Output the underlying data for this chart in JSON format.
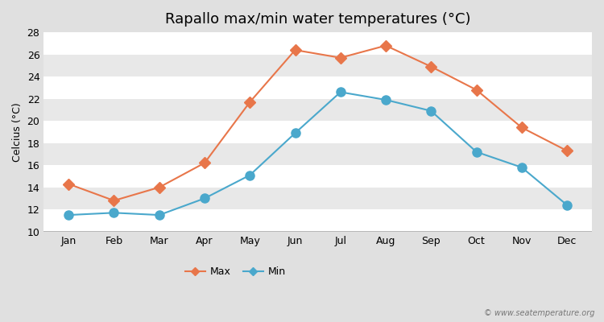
{
  "months": [
    "Jan",
    "Feb",
    "Mar",
    "Apr",
    "May",
    "Jun",
    "Jul",
    "Aug",
    "Sep",
    "Oct",
    "Nov",
    "Dec"
  ],
  "max_temps": [
    14.3,
    12.8,
    14.0,
    16.2,
    21.7,
    26.4,
    25.7,
    26.8,
    24.9,
    22.8,
    19.4,
    17.3
  ],
  "min_temps": [
    11.5,
    11.7,
    11.5,
    13.0,
    15.1,
    18.9,
    22.6,
    21.9,
    20.9,
    17.2,
    15.8,
    12.4
  ],
  "max_color": "#e8764a",
  "min_color": "#4aa8cc",
  "title": "Rapallo max/min water temperatures (°C)",
  "ylabel": "Celcius (°C)",
  "ylim": [
    10,
    28
  ],
  "yticks": [
    10,
    12,
    14,
    16,
    18,
    20,
    22,
    24,
    26,
    28
  ],
  "outer_bg": "#e0e0e0",
  "plot_bg": "#f0f0f0",
  "grid_color": "#ffffff",
  "stripe_color": "#e8e8e8",
  "legend_labels": [
    "Max",
    "Min"
  ],
  "watermark": "© www.seatemperature.org",
  "linewidth": 1.5,
  "markersize": 7,
  "title_fontsize": 13,
  "tick_fontsize": 9,
  "ylabel_fontsize": 9
}
